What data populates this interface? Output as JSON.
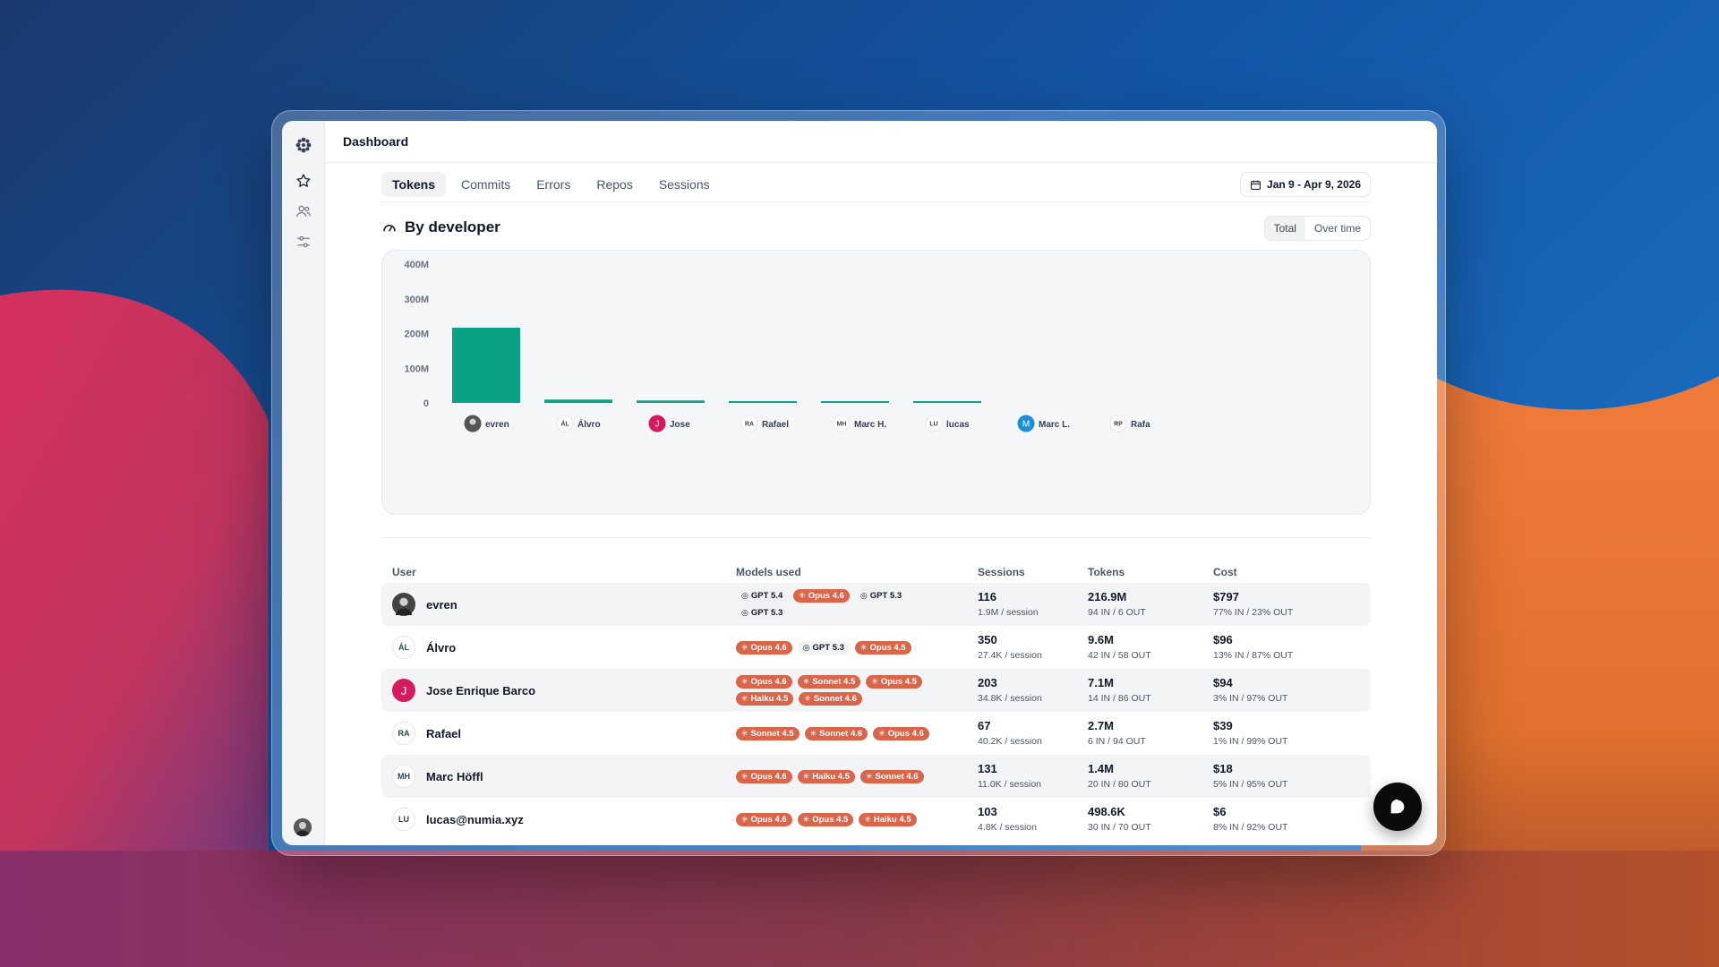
{
  "app": {
    "title": "Dashboard"
  },
  "tabs": [
    {
      "label": "Tokens",
      "active": true
    },
    {
      "label": "Commits",
      "active": false
    },
    {
      "label": "Errors",
      "active": false
    },
    {
      "label": "Repos",
      "active": false
    },
    {
      "label": "Sessions",
      "active": false
    }
  ],
  "date_range": "Jan 9 - Apr 9, 2026",
  "section": {
    "title": "By developer",
    "toggle": {
      "total": "Total",
      "over_time": "Over time",
      "selected": "Total"
    }
  },
  "colors": {
    "bar": "#07a384",
    "claude_pill": "#d9664a",
    "accent_pink": "#d61a5b",
    "accent_blue": "#1d8fd6"
  },
  "chart_data": {
    "type": "bar",
    "categories": [
      "evren",
      "Álvro",
      "Jose",
      "Rafael",
      "Marc H.",
      "lucas",
      "Marc L.",
      "Rafa"
    ],
    "avatars": [
      "photo",
      "ÁL",
      "J",
      "RA",
      "MH",
      "LU",
      "M",
      "RP"
    ],
    "values": [
      216.9,
      9.6,
      7.1,
      2.7,
      1.4,
      0.5,
      0,
      0
    ],
    "unit": "M tokens",
    "ylim": [
      0,
      400
    ],
    "yticks": [
      "0",
      "100M",
      "200M",
      "300M",
      "400M"
    ],
    "title": "",
    "xlabel": "",
    "ylabel": ""
  },
  "table": {
    "headers": {
      "user": "User",
      "models": "Models used",
      "sessions": "Sessions",
      "tokens": "Tokens",
      "cost": "Cost"
    },
    "rows": [
      {
        "avatar": "photo",
        "name": "evren",
        "models": [
          {
            "t": "gpt",
            "label": "GPT 5.4"
          },
          {
            "t": "claude",
            "label": "Opus 4.6"
          },
          {
            "t": "gpt",
            "label": "GPT 5.3"
          },
          {
            "t": "gpt",
            "label": "GPT 5.3"
          }
        ],
        "sessions": "116",
        "sessions_sub": "1.9M / session",
        "tokens": "216.9M",
        "tokens_sub": "94 IN / 6 OUT",
        "cost": "$797",
        "cost_sub": "77% IN / 23% OUT"
      },
      {
        "avatar": "ÁL",
        "name": "Álvro",
        "models": [
          {
            "t": "claude",
            "label": "Opus 4.6"
          },
          {
            "t": "gpt",
            "label": "GPT 5.3"
          },
          {
            "t": "claude",
            "label": "Opus 4.5"
          }
        ],
        "sessions": "350",
        "sessions_sub": "27.4K / session",
        "tokens": "9.6M",
        "tokens_sub": "42 IN / 58 OUT",
        "cost": "$96",
        "cost_sub": "13% IN / 87% OUT"
      },
      {
        "avatar": "J",
        "name": "Jose Enrique Barco",
        "models": [
          {
            "t": "claude",
            "label": "Opus 4.6"
          },
          {
            "t": "claude",
            "label": "Sonnet 4.5"
          },
          {
            "t": "claude",
            "label": "Opus 4.5"
          },
          {
            "t": "claude",
            "label": "Haiku 4.5"
          },
          {
            "t": "claude",
            "label": "Sonnet 4.6"
          }
        ],
        "sessions": "203",
        "sessions_sub": "34.8K / session",
        "tokens": "7.1M",
        "tokens_sub": "14 IN / 86 OUT",
        "cost": "$94",
        "cost_sub": "3% IN / 97% OUT"
      },
      {
        "avatar": "RA",
        "name": "Rafael",
        "models": [
          {
            "t": "claude",
            "label": "Sonnet 4.5"
          },
          {
            "t": "claude",
            "label": "Sonnet 4.6"
          },
          {
            "t": "claude",
            "label": "Opus 4.6"
          }
        ],
        "sessions": "67",
        "sessions_sub": "40.2K / session",
        "tokens": "2.7M",
        "tokens_sub": "6 IN / 94 OUT",
        "cost": "$39",
        "cost_sub": "1% IN / 99% OUT"
      },
      {
        "avatar": "MH",
        "name": "Marc Höffl",
        "models": [
          {
            "t": "claude",
            "label": "Opus 4.6"
          },
          {
            "t": "claude",
            "label": "Haiku 4.5"
          },
          {
            "t": "claude",
            "label": "Sonnet 4.6"
          }
        ],
        "sessions": "131",
        "sessions_sub": "11.0K / session",
        "tokens": "1.4M",
        "tokens_sub": "20 IN / 80 OUT",
        "cost": "$18",
        "cost_sub": "5% IN / 95% OUT"
      },
      {
        "avatar": "LU",
        "name": "lucas@numia.xyz",
        "models": [
          {
            "t": "claude",
            "label": "Opus 4.6"
          },
          {
            "t": "claude",
            "label": "Opus 4.5"
          },
          {
            "t": "claude",
            "label": "Haiku 4.5"
          }
        ],
        "sessions": "103",
        "sessions_sub": "4.8K / session",
        "tokens": "498.6K",
        "tokens_sub": "30 IN / 70 OUT",
        "cost": "$6",
        "cost_sub": "8% IN / 92% OUT"
      }
    ]
  }
}
